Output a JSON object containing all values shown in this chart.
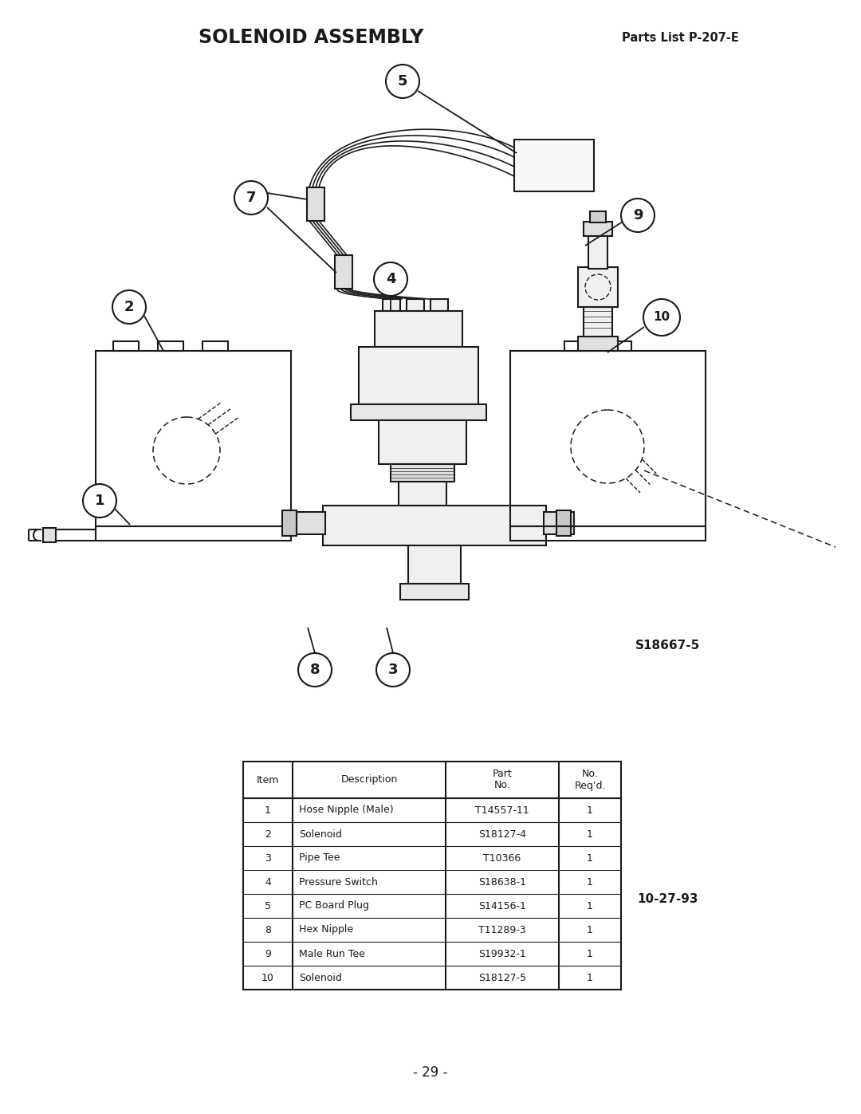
{
  "title": "SOLENOID ASSEMBLY",
  "parts_list_label": "Parts List P-207-E",
  "drawing_id": "S18667-5",
  "date": "10-27-93",
  "page": "- 29 -",
  "bg_color": "#ffffff",
  "line_color": "#1a1a1a",
  "table_rows": [
    [
      "1",
      "Hose Nipple (Male)",
      "T14557-11",
      "1"
    ],
    [
      "2",
      "Solenoid",
      "S18127-4",
      "1"
    ],
    [
      "3",
      "Pipe Tee",
      "T10366",
      "1"
    ],
    [
      "4",
      "Pressure Switch",
      "S18638-1",
      "1"
    ],
    [
      "5",
      "PC Board Plug",
      "S14156-1",
      "1"
    ],
    [
      "8",
      "Hex Nipple",
      "T11289-3",
      "1"
    ],
    [
      "9",
      "Male Run Tee",
      "S19932-1",
      "1"
    ],
    [
      "10",
      "Solenoid",
      "S18127-5",
      "1"
    ]
  ]
}
